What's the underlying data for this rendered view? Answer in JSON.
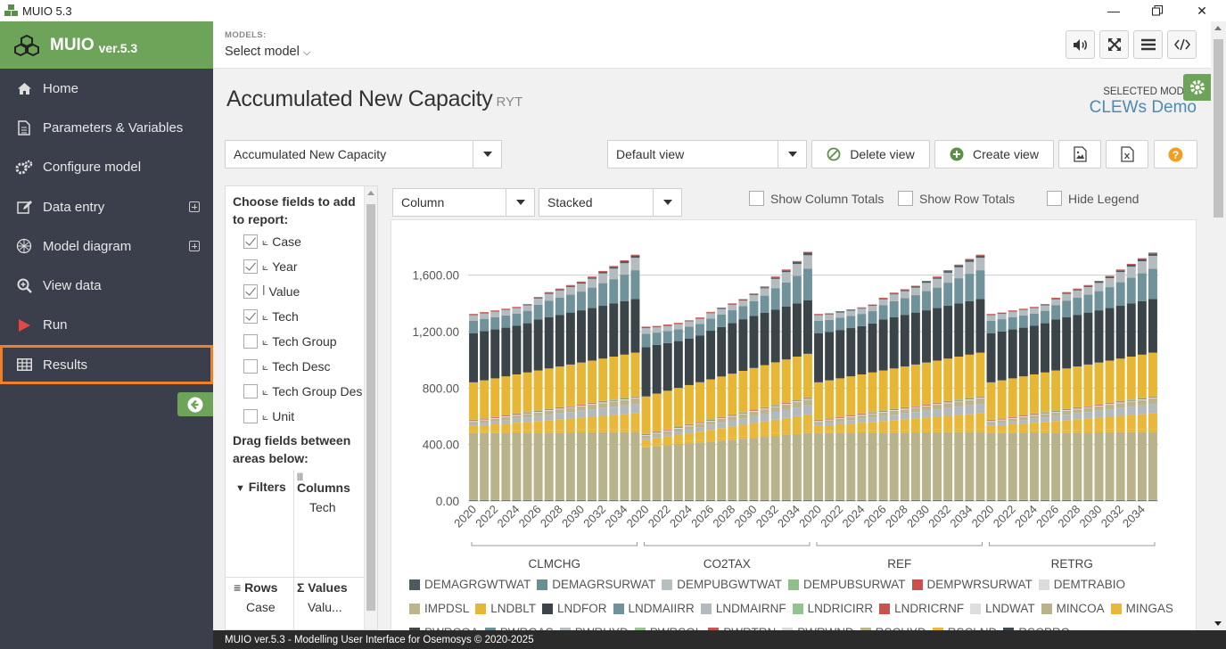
{
  "window": {
    "title": "MUIO 5.3"
  },
  "sidebar": {
    "app_name": "MUIO",
    "version": "ver.5.3",
    "items": [
      {
        "label": "Home",
        "icon": "home-icon"
      },
      {
        "label": "Parameters & Variables",
        "icon": "document-icon"
      },
      {
        "label": "Configure model",
        "icon": "gears-icon"
      },
      {
        "label": "Data entry",
        "icon": "edit-icon",
        "expandable": true
      },
      {
        "label": "Model diagram",
        "icon": "diagram-icon",
        "expandable": true
      },
      {
        "label": "View data",
        "icon": "search-plus-icon"
      },
      {
        "label": "Run",
        "icon": "play-icon"
      },
      {
        "label": "Results",
        "icon": "table-icon",
        "active": true
      }
    ]
  },
  "topbar": {
    "models_label": "MODELS:",
    "select_model": "Select model"
  },
  "page": {
    "title": "Accumulated New Capacity",
    "title_sub": "RYT",
    "selected_model_label": "SELECTED MODEL",
    "selected_model_name": "CLEWs Demo"
  },
  "toolbar": {
    "variable_select": "Accumulated New Capacity",
    "view_select": "Default view",
    "delete_view": "Delete view",
    "create_view": "Create view"
  },
  "pivot": {
    "choose_fields": "Choose fields to add to report:",
    "fields": [
      {
        "label": "Case",
        "checked": true,
        "icon": "⟀"
      },
      {
        "label": "Year",
        "checked": true,
        "icon": "⟀"
      },
      {
        "label": "Value",
        "checked": true,
        "icon": "ꟾ"
      },
      {
        "label": "Tech",
        "checked": true,
        "icon": "⟀"
      },
      {
        "label": "Tech Group",
        "checked": false,
        "icon": "⟀"
      },
      {
        "label": "Tech Desc",
        "checked": false,
        "icon": "⟀"
      },
      {
        "label": "Tech Group Des",
        "checked": false,
        "icon": "⟀"
      },
      {
        "label": "Unit",
        "checked": false,
        "icon": "⟀"
      }
    ],
    "drag_label": "Drag fields between areas below:",
    "filters_label": "Filters",
    "columns_label": "Columns",
    "columns_value": "Tech",
    "rows_label": "Rows",
    "rows_value": "Case",
    "values_label": "Values",
    "values_value": "Valu..."
  },
  "chart_controls": {
    "chart_type": "Column",
    "stacking": "Stacked",
    "show_column_totals": "Show Column Totals",
    "show_row_totals": "Show Row Totals",
    "hide_legend": "Hide Legend"
  },
  "chart_data": {
    "type": "bar",
    "stacked": true,
    "ylim": [
      0,
      1800
    ],
    "yticks": [
      0,
      400,
      800,
      1200,
      1600
    ],
    "ytick_labels": [
      "0.00",
      "400.00",
      "800.00",
      "1,200.00",
      "1,600.00"
    ],
    "groups": [
      "CLMCHG",
      "CO2TAX",
      "REF",
      "RETRG"
    ],
    "years": [
      2020,
      2021,
      2022,
      2023,
      2024,
      2025,
      2026,
      2027,
      2028,
      2029,
      2030,
      2031,
      2032,
      2033,
      2034,
      2035
    ],
    "year_tick_labels": [
      "2020",
      "2022",
      "2024",
      "2026",
      "2028",
      "2030",
      "2032",
      "2034"
    ],
    "grid": true,
    "legend_position": "bottom",
    "series_components_at_start_and_end": {
      "MINCOA": [
        470,
        478
      ],
      "MINGAS": [
        35,
        110
      ],
      "LNDBLT": [
        265,
        310
      ],
      "LNDFOR": [
        350,
        380
      ],
      "LNDMAIIRR": [
        30,
        370
      ],
      "LNDMAIRNF": [
        30,
        130
      ],
      "RSCLND": [
        15,
        22
      ]
    },
    "totals": {
      "CLMCHG": [
        1325,
        1338,
        1350,
        1362,
        1375,
        1395,
        1445,
        1480,
        1505,
        1530,
        1555,
        1590,
        1630,
        1665,
        1705,
        1745
      ],
      "CO2TAX": [
        1235,
        1240,
        1250,
        1262,
        1280,
        1300,
        1340,
        1370,
        1400,
        1430,
        1470,
        1520,
        1590,
        1640,
        1700,
        1765
      ],
      "REF": [
        1325,
        1330,
        1345,
        1358,
        1372,
        1392,
        1440,
        1476,
        1500,
        1525,
        1560,
        1590,
        1635,
        1675,
        1715,
        1745
      ],
      "RETRG": [
        1325,
        1335,
        1350,
        1362,
        1375,
        1395,
        1440,
        1480,
        1505,
        1530,
        1560,
        1595,
        1640,
        1680,
        1720,
        1760
      ]
    },
    "series": [
      {
        "name": "DEMAGRGWTWAT",
        "color": "#4f5a5e"
      },
      {
        "name": "DEMAGRSURWAT",
        "color": "#6a8e96"
      },
      {
        "name": "DEMPUBGWTWAT",
        "color": "#b7bfc1"
      },
      {
        "name": "DEMPUBSURWAT",
        "color": "#8fbf8a"
      },
      {
        "name": "DEMPWRSURWAT",
        "color": "#c9504b"
      },
      {
        "name": "DEMTRABIO",
        "color": "#dcdcdc"
      },
      {
        "name": "IMPDSL",
        "color": "#bcb48a"
      },
      {
        "name": "LNDBLT",
        "color": "#e8b635"
      },
      {
        "name": "LNDFOR",
        "color": "#3b4449"
      },
      {
        "name": "LNDMAIIRR",
        "color": "#6f929b"
      },
      {
        "name": "LNDMAIRNF",
        "color": "#b3babd"
      },
      {
        "name": "LNDRICIRR",
        "color": "#92c28d"
      },
      {
        "name": "LNDRICRNF",
        "color": "#c8524d"
      },
      {
        "name": "LNDWAT",
        "color": "#dedede"
      },
      {
        "name": "MINCOA",
        "color": "#b8b38a"
      },
      {
        "name": "MINGAS",
        "color": "#e9b83a"
      },
      {
        "name": "PWRCOA",
        "color": "#3e474c"
      },
      {
        "name": "PWRGAS",
        "color": "#6c9099"
      },
      {
        "name": "PWRHYD",
        "color": "#b5bcbf"
      },
      {
        "name": "PWRSOL",
        "color": "#95c490"
      },
      {
        "name": "PWRTRN",
        "color": "#c65450"
      },
      {
        "name": "PWRWND",
        "color": "#d8d8d8"
      },
      {
        "name": "RSCHYD",
        "color": "#bab58c"
      },
      {
        "name": "RSCLND",
        "color": "#eab73a"
      },
      {
        "name": "RSCPRC",
        "color": "#3f484d"
      }
    ]
  },
  "footer": {
    "text": "MUIO ver.5.3 - Modelling User Interface for Osemosys © 2020-2025"
  }
}
